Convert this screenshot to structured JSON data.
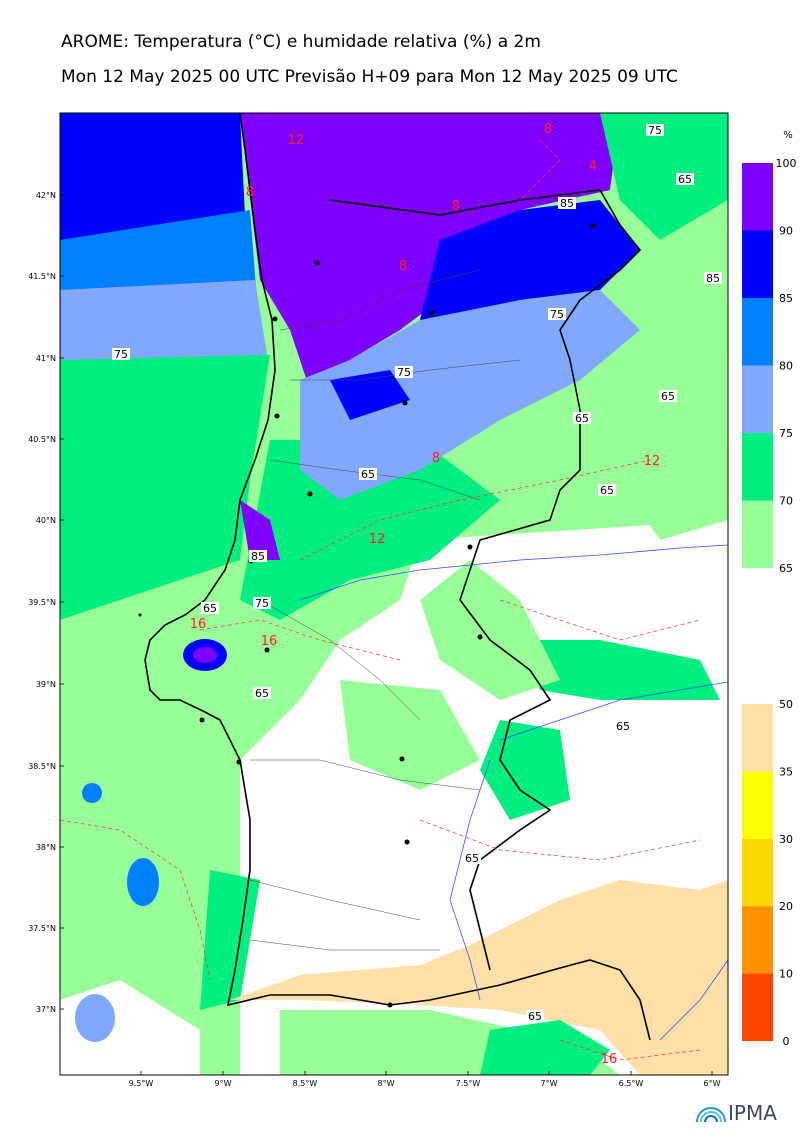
{
  "header": {
    "title": "AROME: Temperatura (°C) e humidade relativa (%) a 2m",
    "subtitle": "Mon 12 May 2025 00 UTC Previsão H+09 para Mon 12 May 2025 09 UTC"
  },
  "axes": {
    "lat_labels": [
      "42°N",
      "41.5°N",
      "41°N",
      "40.5°N",
      "40°N",
      "39.5°N",
      "39°N",
      "38.5°N",
      "38°N",
      "37.5°N",
      "37°N"
    ],
    "lon_labels": [
      "9.5°W",
      "9°W",
      "8.5°W",
      "8°W",
      "7.5°W",
      "7°W",
      "6.5°W",
      "6°W"
    ]
  },
  "humidity_scale": {
    "unit": "%",
    "ticks": [
      "100",
      "90",
      "85",
      "80",
      "75",
      "70",
      "65"
    ],
    "colors": [
      "#8000ff",
      "#0000ff",
      "#0080ff",
      "#80a8ff",
      "#00ee80",
      "#98ff98"
    ]
  },
  "temperature_scale": {
    "ticks": [
      "50",
      "35",
      "30",
      "20",
      "10",
      "0"
    ],
    "colors": [
      "#ffe0a8",
      "#ffff00",
      "#ffd700",
      "#ffa500",
      "#ff7000",
      "#ff4500"
    ]
  },
  "contour_labels": {
    "humidity": [
      "75",
      "75",
      "65",
      "85",
      "85",
      "75",
      "75",
      "65",
      "65",
      "65",
      "85",
      "75",
      "65",
      "65",
      "65",
      "65",
      "65",
      "65"
    ],
    "temperature": [
      "12",
      "8",
      "8",
      "8",
      "8",
      "12",
      "12",
      "16",
      "16",
      "16",
      "4",
      "8"
    ]
  },
  "branding": {
    "logo": "IPMA"
  },
  "colors": {
    "accent_logo": "#1a9ad6",
    "coastline": "#000000",
    "rivers": "#3050ff",
    "temperature_contour": "#ff3030"
  }
}
